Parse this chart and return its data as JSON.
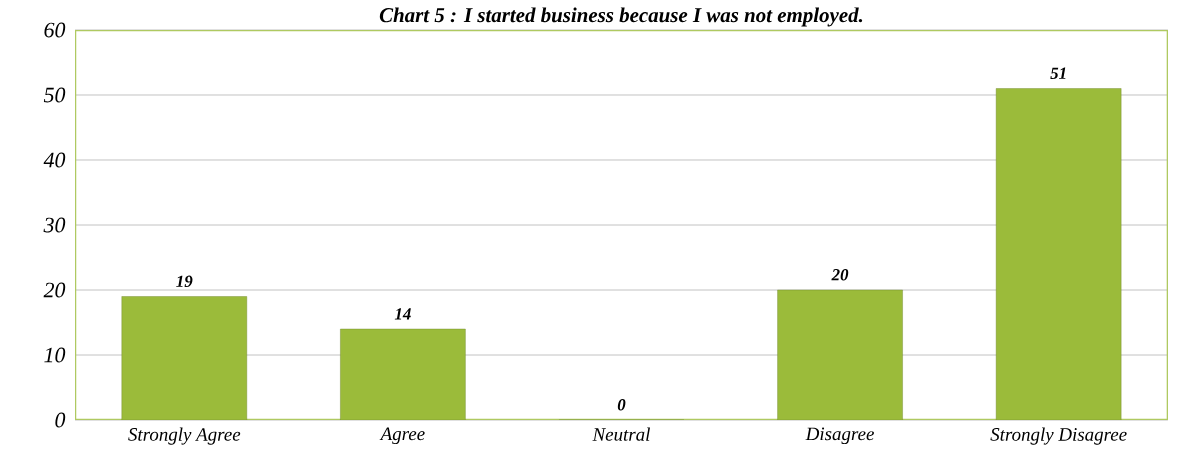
{
  "chart_data": {
    "type": "bar",
    "title": "Chart 5 :  I started business because I was not employed.",
    "categories": [
      "Strongly Agree",
      "Agree",
      "Neutral",
      "Disagree",
      "Strongly Disagree"
    ],
    "values": [
      19,
      14,
      0,
      20,
      51
    ],
    "color": "#9bbb3a",
    "ylim": [
      0,
      60
    ],
    "yticks": [
      0,
      10,
      20,
      30,
      40,
      50,
      60
    ],
    "grid": "y",
    "data_labels": true
  }
}
